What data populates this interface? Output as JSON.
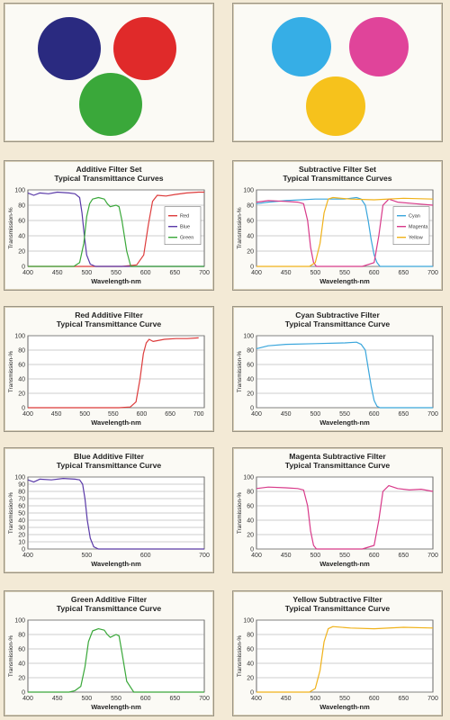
{
  "swatches": [
    {
      "colors": [
        "#2a2a80",
        "#e02a2a",
        "#3aa83a"
      ]
    },
    {
      "colors": [
        "#36aee6",
        "#e0449a",
        "#f6c21c"
      ]
    }
  ],
  "chart_data": [
    {
      "type": "line",
      "title": "Additive Filter Set",
      "subtitle": "Typical Transmittance Curves",
      "xlabel": "Wavelength-nm",
      "ylabel": "Transmission-%",
      "xlim": [
        400,
        700
      ],
      "ylim": [
        0,
        100
      ],
      "xticks": [
        400,
        450,
        500,
        550,
        600,
        650,
        700
      ],
      "yticks": [
        0,
        20,
        40,
        60,
        80,
        100
      ],
      "legend": "center-right",
      "series": [
        {
          "name": "Red",
          "color": "#dd3b3b",
          "x": [
            400,
            560,
            585,
            597,
            605,
            612,
            620,
            635,
            650,
            670,
            690,
            700
          ],
          "y": [
            0,
            0,
            2,
            15,
            55,
            85,
            93,
            92,
            94,
            96,
            97,
            97
          ]
        },
        {
          "name": "Blue",
          "color": "#5a3aa8",
          "x": [
            400,
            410,
            420,
            435,
            450,
            470,
            480,
            488,
            492,
            496,
            500,
            506,
            515,
            700
          ],
          "y": [
            96,
            93,
            96,
            95,
            97,
            96,
            95,
            90,
            70,
            40,
            15,
            3,
            0,
            0
          ]
        },
        {
          "name": "Green",
          "color": "#3aa83a",
          "x": [
            400,
            478,
            488,
            495,
            500,
            505,
            510,
            520,
            530,
            535,
            540,
            550,
            555,
            560,
            568,
            575,
            700
          ],
          "y": [
            0,
            0,
            5,
            30,
            65,
            82,
            88,
            90,
            88,
            82,
            78,
            80,
            78,
            60,
            20,
            0,
            0
          ]
        }
      ]
    },
    {
      "type": "line",
      "title": "Subtractive Filter Set",
      "subtitle": "Typical Transmittance Curves",
      "xlabel": "Wavelength-nm",
      "ylabel": "Transmission-%",
      "xlim": [
        400,
        700
      ],
      "ylim": [
        0,
        100
      ],
      "xticks": [
        400,
        450,
        500,
        550,
        600,
        650,
        700
      ],
      "yticks": [
        0,
        20,
        40,
        60,
        80,
        100
      ],
      "legend": "center-right",
      "series": [
        {
          "name": "Cyan",
          "color": "#3aa6dc",
          "x": [
            400,
            420,
            450,
            500,
            550,
            570,
            578,
            585,
            590,
            595,
            600,
            605,
            610,
            700
          ],
          "y": [
            82,
            84,
            86,
            88,
            88,
            90,
            88,
            80,
            60,
            35,
            15,
            5,
            0,
            0
          ]
        },
        {
          "name": "Magenta",
          "color": "#d83a8a",
          "x": [
            400,
            420,
            450,
            470,
            480,
            487,
            492,
            497,
            502,
            510,
            580,
            600,
            608,
            615,
            625,
            640,
            670,
            700
          ],
          "y": [
            84,
            86,
            85,
            84,
            82,
            60,
            25,
            5,
            0,
            0,
            0,
            5,
            40,
            80,
            88,
            84,
            82,
            80
          ]
        },
        {
          "name": "Yellow",
          "color": "#f0b21a",
          "x": [
            400,
            490,
            500,
            508,
            515,
            522,
            530,
            560,
            600,
            650,
            700
          ],
          "y": [
            0,
            0,
            5,
            30,
            70,
            88,
            90,
            88,
            87,
            89,
            88
          ]
        }
      ]
    },
    {
      "type": "line",
      "title": "Red Additive Filter",
      "subtitle": "Typical Transmittance Curve",
      "xlabel": "Wavelength-nm",
      "ylabel": "Transmission-%",
      "xlim": [
        400,
        710
      ],
      "ylim": [
        0,
        100
      ],
      "xticks": [
        400,
        450,
        500,
        550,
        600,
        650,
        700
      ],
      "yticks": [
        0,
        20,
        40,
        60,
        80,
        100
      ],
      "legend": "none",
      "series": [
        {
          "color": "#dd3b3b",
          "x": [
            400,
            560,
            580,
            590,
            597,
            603,
            608,
            613,
            620,
            640,
            660,
            680,
            700
          ],
          "y": [
            0,
            0,
            1,
            8,
            40,
            75,
            90,
            95,
            92,
            95,
            96,
            96,
            97
          ]
        }
      ]
    },
    {
      "type": "line",
      "title": "Cyan Subtractive Filter",
      "subtitle": "Typical Transmittance Curve",
      "xlabel": "Wavelength-nm",
      "ylabel": "Transmission-%",
      "xlim": [
        400,
        700
      ],
      "ylim": [
        0,
        100
      ],
      "xticks": [
        400,
        450,
        500,
        550,
        600,
        650,
        700
      ],
      "yticks": [
        0,
        20,
        40,
        60,
        80,
        100
      ],
      "legend": "none",
      "series": [
        {
          "color": "#3aa6dc",
          "x": [
            400,
            420,
            450,
            500,
            550,
            570,
            578,
            585,
            590,
            595,
            600,
            605,
            610,
            700
          ],
          "y": [
            82,
            86,
            88,
            89,
            90,
            91,
            88,
            80,
            55,
            30,
            10,
            2,
            0,
            0
          ]
        }
      ]
    },
    {
      "type": "line",
      "title": "Blue Additive Filter",
      "subtitle": "Typical Transmittance Curve",
      "xlabel": "Wavelength-nm",
      "ylabel": "Transmission-%",
      "xlim": [
        400,
        700
      ],
      "ylim": [
        0,
        100
      ],
      "xticks": [
        400,
        500,
        600,
        700
      ],
      "yticks": [
        0,
        10,
        20,
        30,
        40,
        50,
        60,
        70,
        80,
        90,
        100
      ],
      "legend": "none",
      "series": [
        {
          "color": "#5a3aa8",
          "x": [
            400,
            410,
            420,
            440,
            460,
            480,
            488,
            493,
            497,
            501,
            506,
            512,
            520,
            700
          ],
          "y": [
            96,
            93,
            97,
            96,
            98,
            97,
            96,
            90,
            70,
            40,
            15,
            3,
            0,
            0
          ]
        }
      ]
    },
    {
      "type": "line",
      "title": "Magenta Subtractive Filter",
      "subtitle": "Typical Transmittance Curve",
      "xlabel": "Wavelength-nm",
      "ylabel": "Transmission-%",
      "xlim": [
        400,
        700
      ],
      "ylim": [
        0,
        100
      ],
      "xticks": [
        400,
        450,
        500,
        550,
        600,
        650,
        700
      ],
      "yticks": [
        0,
        20,
        40,
        60,
        80,
        100
      ],
      "legend": "none",
      "series": [
        {
          "color": "#d83a8a",
          "x": [
            400,
            420,
            450,
            470,
            480,
            487,
            492,
            497,
            502,
            510,
            580,
            600,
            608,
            615,
            625,
            640,
            660,
            680,
            700
          ],
          "y": [
            84,
            86,
            85,
            84,
            82,
            60,
            25,
            5,
            0,
            0,
            0,
            5,
            40,
            80,
            88,
            84,
            82,
            83,
            80
          ]
        }
      ]
    },
    {
      "type": "line",
      "title": "Green Additive Filter",
      "subtitle": "Typical Transmittance Curve",
      "xlabel": "Wavelength-nm",
      "ylabel": "Transmission-%",
      "xlim": [
        400,
        700
      ],
      "ylim": [
        0,
        100
      ],
      "xticks": [
        400,
        450,
        500,
        550,
        600,
        650,
        700
      ],
      "yticks": [
        0,
        20,
        40,
        60,
        80,
        100
      ],
      "legend": "none",
      "series": [
        {
          "color": "#3aa83a",
          "x": [
            400,
            470,
            480,
            490,
            497,
            503,
            510,
            520,
            530,
            535,
            540,
            550,
            555,
            560,
            568,
            580,
            700
          ],
          "y": [
            0,
            0,
            2,
            8,
            35,
            70,
            85,
            88,
            86,
            80,
            76,
            80,
            78,
            55,
            15,
            0,
            0
          ]
        }
      ]
    },
    {
      "type": "line",
      "title": "Yellow Subtractive Filter",
      "subtitle": "Typical Transmittance Curve",
      "xlabel": "Wavelength-nm",
      "ylabel": "Transmission-%",
      "xlim": [
        400,
        700
      ],
      "ylim": [
        0,
        100
      ],
      "xticks": [
        400,
        450,
        500,
        550,
        600,
        650,
        700
      ],
      "yticks": [
        0,
        20,
        40,
        60,
        80,
        100
      ],
      "legend": "none",
      "series": [
        {
          "color": "#f0b21a",
          "x": [
            400,
            490,
            500,
            508,
            515,
            522,
            530,
            560,
            600,
            650,
            700
          ],
          "y": [
            0,
            0,
            5,
            30,
            70,
            88,
            91,
            89,
            88,
            90,
            89
          ]
        }
      ]
    }
  ]
}
